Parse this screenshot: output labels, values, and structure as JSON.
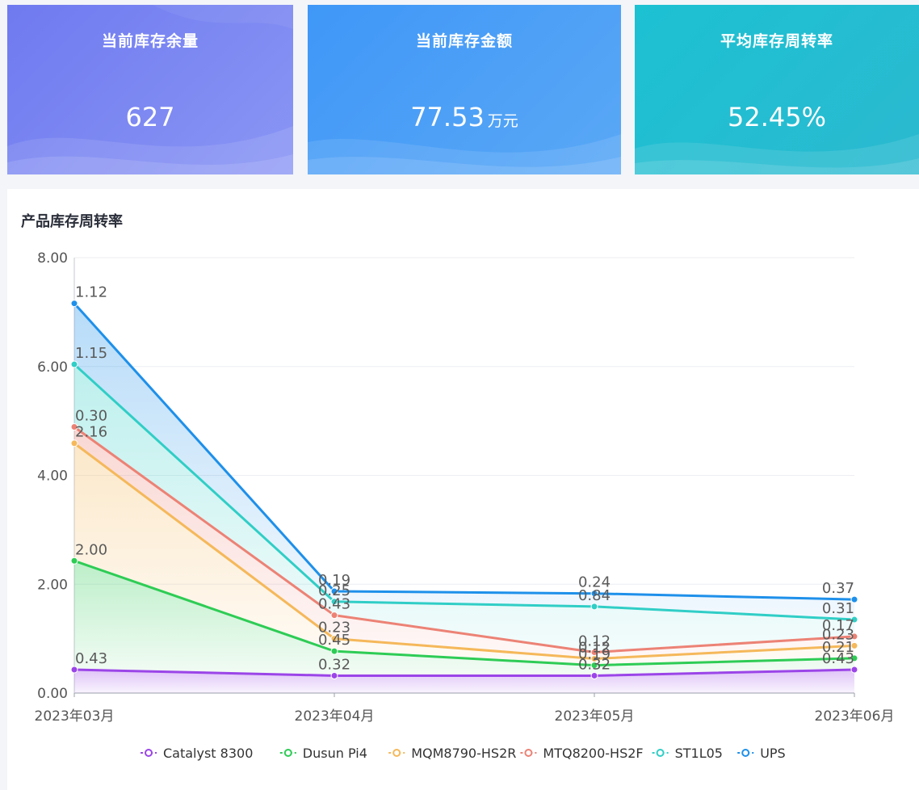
{
  "cards": [
    {
      "title": "当前库存余量",
      "value": "627",
      "unit": ""
    },
    {
      "title": "当前库存金额",
      "value": "77.53",
      "unit": "万元"
    },
    {
      "title": "平均库存周转率",
      "value": "52.45%",
      "unit": ""
    }
  ],
  "panel_title": "产品库存周转率",
  "chart_data": {
    "type": "area",
    "stacked": true,
    "categories": [
      "2023年03月",
      "2023年04月",
      "2023年05月",
      "2023年06月"
    ],
    "yticks": [
      "0.00",
      "2.00",
      "4.00",
      "6.00",
      "8.00"
    ],
    "ylim": [
      0,
      8
    ],
    "legend_position": "bottom",
    "series": [
      {
        "name": "Catalyst 8300",
        "color": "#9b45e8",
        "values": [
          0.43,
          0.32,
          0.32,
          0.43
        ],
        "labels": [
          "0.43",
          "0.32",
          "0.32",
          "0.43"
        ]
      },
      {
        "name": "Dusun Pi4",
        "color": "#2ecc55",
        "values": [
          2.0,
          0.45,
          0.19,
          0.21
        ],
        "labels": [
          "2.00",
          "0.45",
          "0.19",
          "0.21"
        ]
      },
      {
        "name": "MQM8790-HS2R",
        "color": "#f5b85a",
        "values": [
          2.16,
          0.23,
          0.12,
          0.23
        ],
        "labels": [
          "2.16",
          "0.23",
          "0.12",
          "0.23"
        ]
      },
      {
        "name": "MTQ8200-HS2F",
        "color": "#ec8275",
        "values": [
          0.3,
          0.43,
          0.12,
          0.17
        ],
        "labels": [
          "0.30",
          "0.43",
          "0.12",
          "0.17"
        ]
      },
      {
        "name": "ST1L05",
        "color": "#30cec6",
        "values": [
          1.15,
          0.25,
          0.84,
          0.31
        ],
        "labels": [
          "1.15",
          "0.25",
          "0.84",
          "0.31"
        ]
      },
      {
        "name": "UPS",
        "color": "#1e90ea",
        "values": [
          1.12,
          0.19,
          0.24,
          0.37
        ],
        "labels": [
          "1.12",
          "0.19",
          "0.24",
          "0.37"
        ]
      }
    ]
  }
}
